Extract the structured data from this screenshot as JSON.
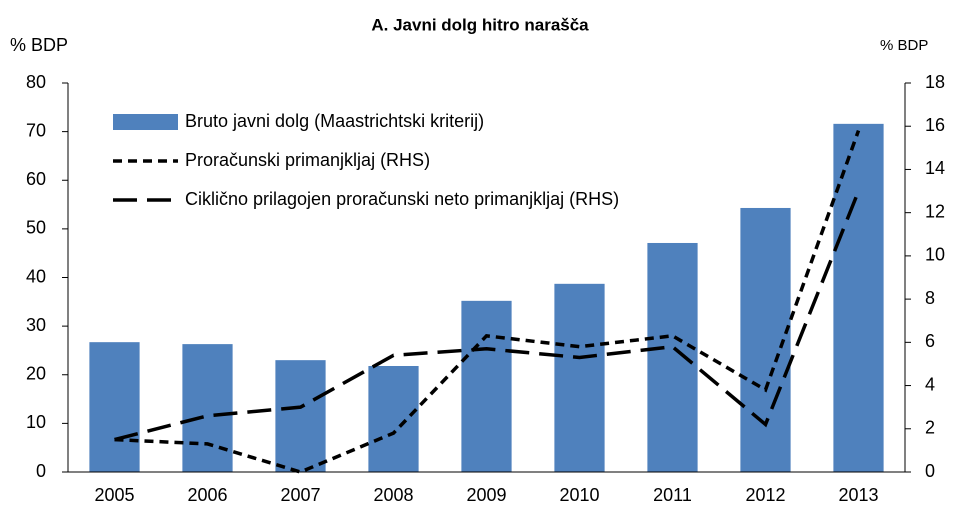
{
  "chart_data": {
    "type": "bar",
    "title": "A. Javni dolg hitro narašča",
    "ylabel": "% BDP",
    "y2label": "% BDP",
    "categories": [
      "2005",
      "2006",
      "2007",
      "2008",
      "2009",
      "2010",
      "2011",
      "2012",
      "2013"
    ],
    "series": [
      {
        "name": "Bruto javni dolg (Maastrichtski kriterij)",
        "type": "bar",
        "color": "#4f81bd",
        "values": [
          26.7,
          26.3,
          23.0,
          21.8,
          35.2,
          38.7,
          47.1,
          54.3,
          71.6
        ]
      },
      {
        "name": "Proračunski primanjkljaj (RHS)",
        "type": "line",
        "axis": "y2",
        "color": "#000000",
        "dash": "short",
        "values": [
          1.5,
          1.3,
          0,
          1.8,
          6.3,
          5.8,
          6.3,
          3.8,
          15.8
        ]
      },
      {
        "name": "Ciklično prilagojen proračunski neto primanjkljaj (RHS)",
        "type": "line",
        "axis": "y2",
        "color": "#000000",
        "dash": "long",
        "values": [
          1.5,
          2.6,
          3.0,
          5.4,
          5.7,
          5.3,
          5.8,
          2.2,
          13.0
        ]
      }
    ],
    "ylim": [
      0,
      80
    ],
    "yticks": [
      0,
      10,
      20,
      30,
      40,
      50,
      60,
      70,
      80
    ],
    "y2lim": [
      0,
      18
    ],
    "y2ticks": [
      0,
      2,
      4,
      6,
      8,
      10,
      12,
      14,
      16,
      18
    ],
    "grid": false,
    "legend": "upper left"
  }
}
